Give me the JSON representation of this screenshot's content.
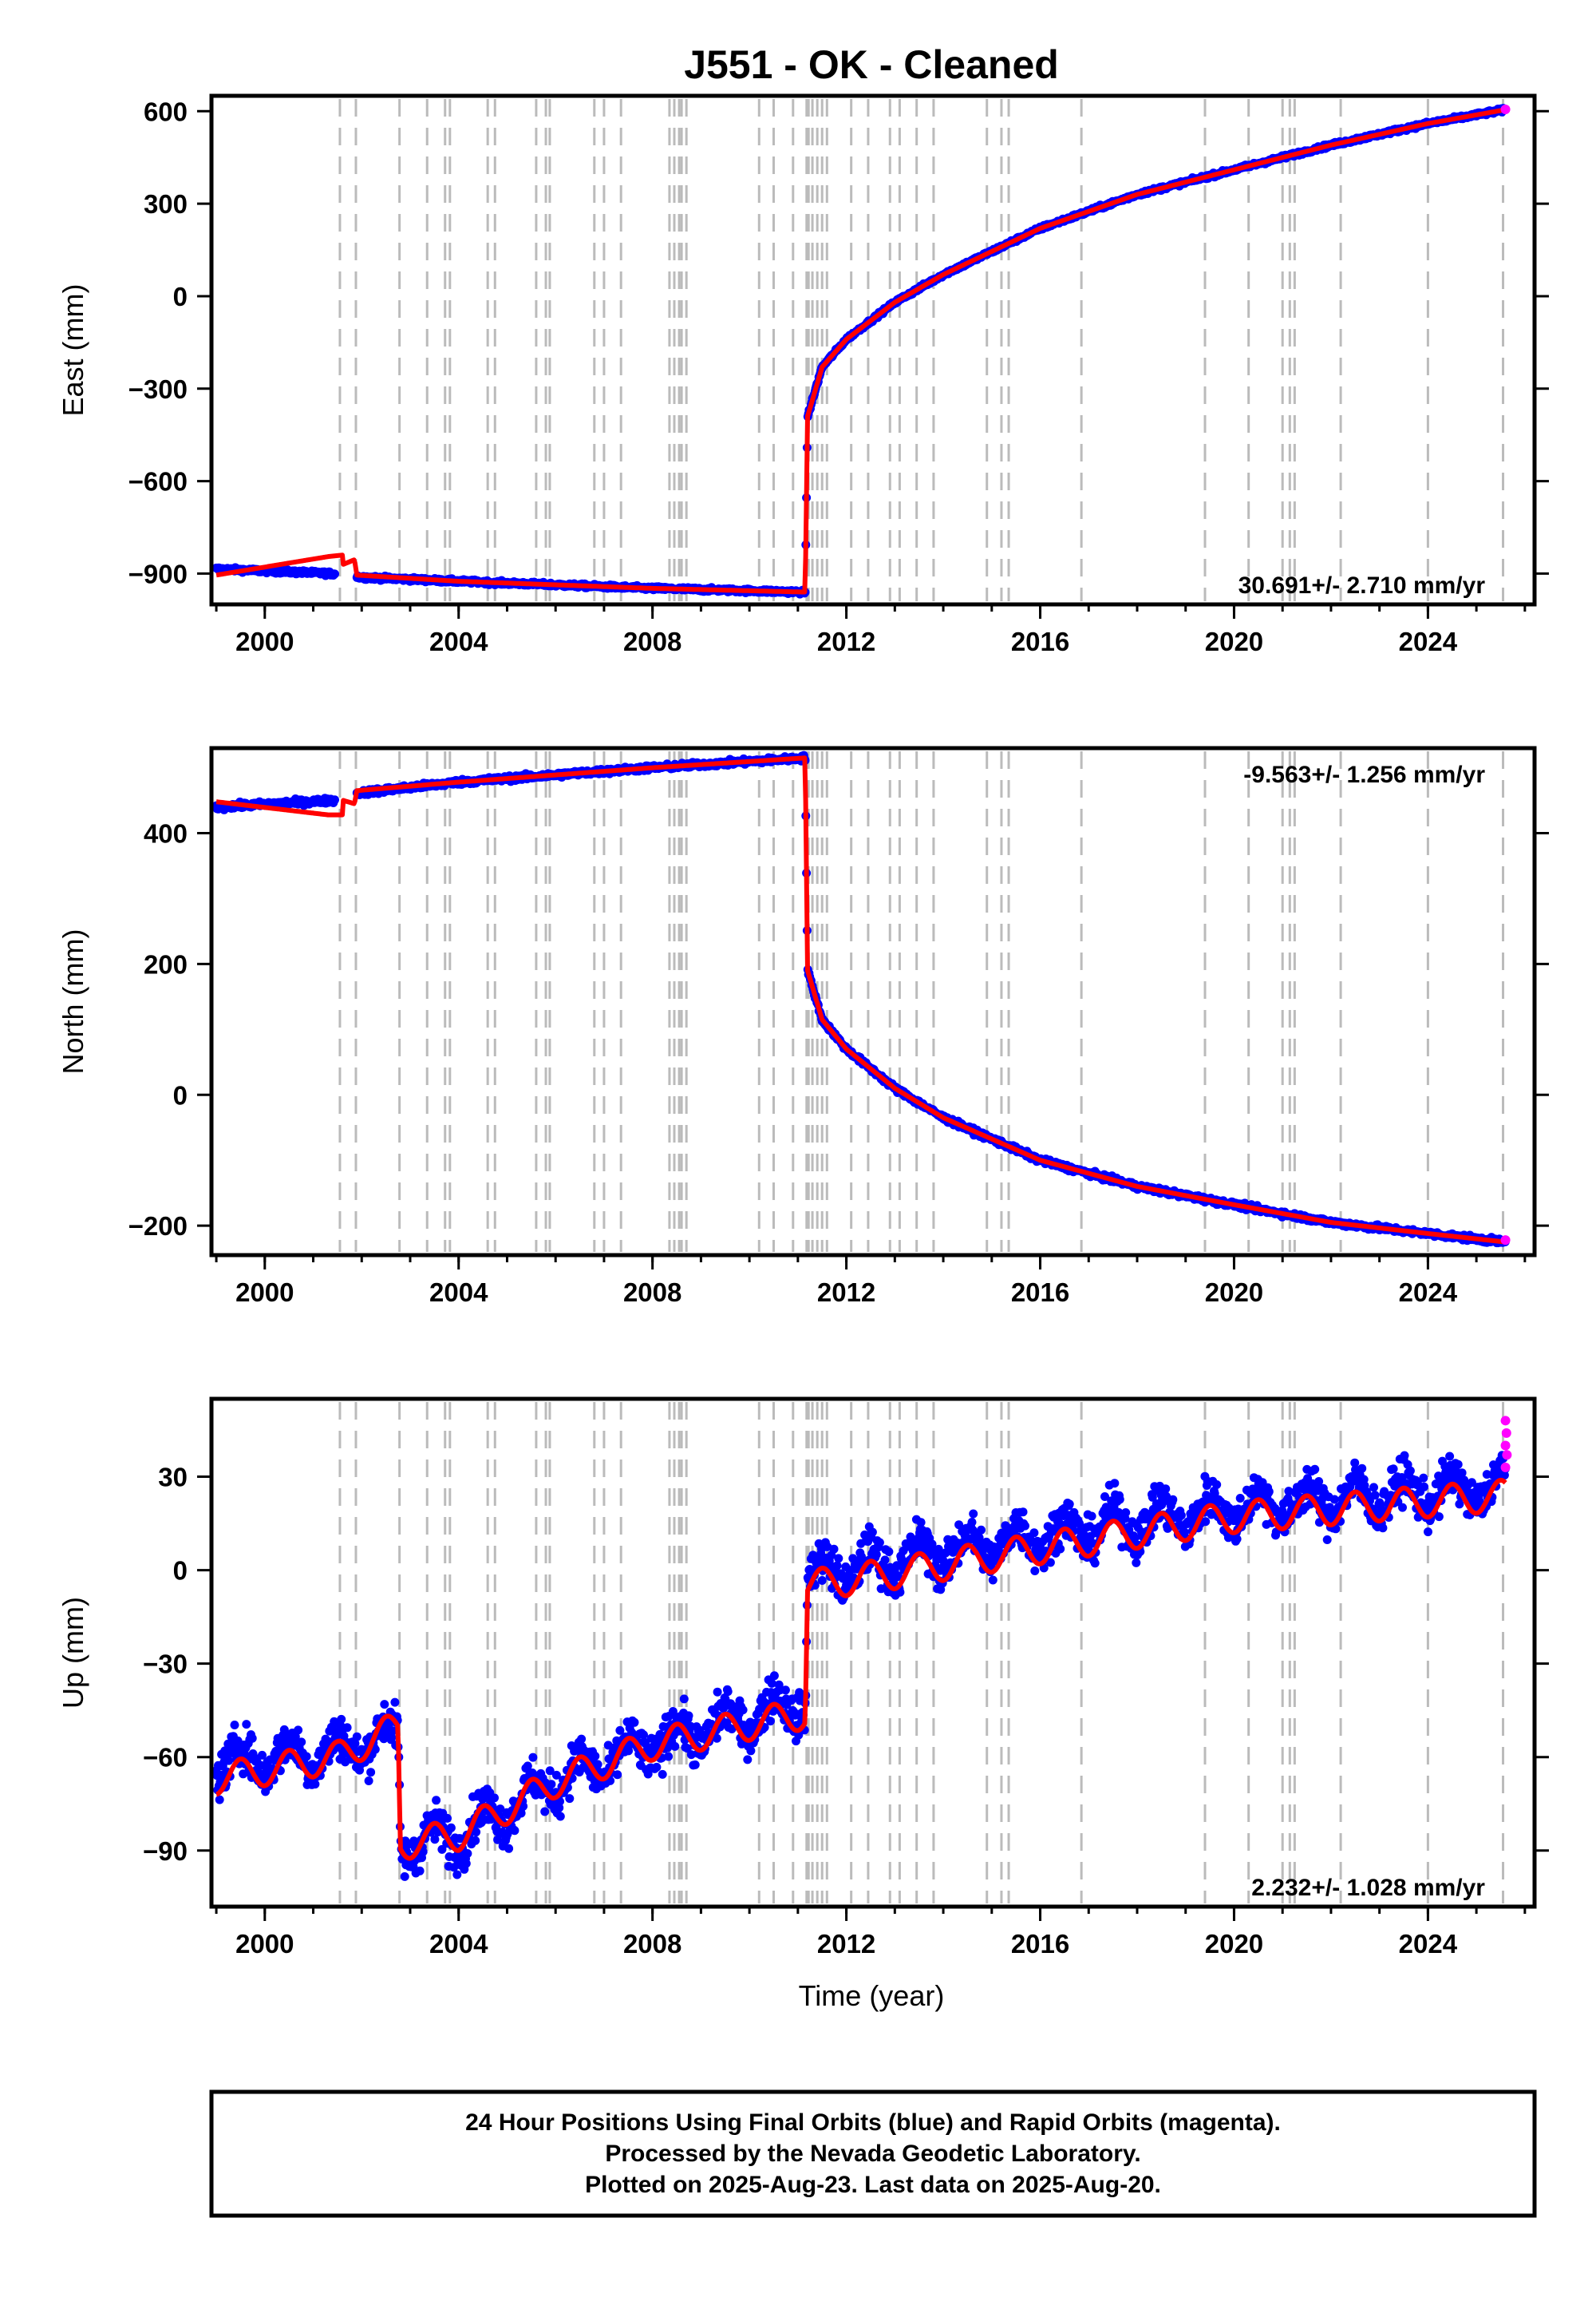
{
  "title": "J551  - OK - Cleaned",
  "xlabel": "Time (year)",
  "footer": {
    "line1": "24 Hour Positions Using Final Orbits (blue) and Rapid Orbits (magenta).",
    "line2": "Processed by the Nevada Geodetic Laboratory.",
    "line3": "Plotted on 2025-Aug-23. Last data on 2025-Aug-20."
  },
  "colors": {
    "final_orbits": "#0000ff",
    "rapid_orbits": "#ff00ff",
    "model": "#ff0000",
    "event_lines": "#bbbbbb",
    "frame": "#000000"
  },
  "chart_data": [
    {
      "type": "scatter",
      "component": "east",
      "ylabel": "East (mm)",
      "xlim": [
        1998.9,
        2026.2
      ],
      "ylim": [
        -1000,
        650
      ],
      "xticks": [
        "2000",
        "2004",
        "2008",
        "2012",
        "2016",
        "2020",
        "2024"
      ],
      "yticks": [
        "600",
        "300",
        "0",
        "-300",
        "-600",
        "-900"
      ],
      "rate_label": "30.691+/- 2.710 mm/yr",
      "rate_position": "bottom-right",
      "event_years": [
        2001.55,
        2001.88,
        2002.78,
        2003.35,
        2003.72,
        2003.82,
        2004.6,
        2004.75,
        2005.6,
        2005.8,
        2005.88,
        2006.8,
        2007.0,
        2007.35,
        2008.35,
        2008.45,
        2008.55,
        2008.6,
        2008.7,
        2010.2,
        2010.5,
        2010.9,
        2011.18,
        2011.22,
        2011.3,
        2011.4,
        2011.5,
        2011.6,
        2012.1,
        2012.45,
        2012.9,
        2013.1,
        2013.45,
        2013.8,
        2014.9,
        2015.2,
        2015.35,
        2016.85,
        2019.4,
        2020.3,
        2021.0,
        2021.15,
        2021.25,
        2022.2,
        2024.0,
        2025.55
      ],
      "key_points": [
        {
          "x": 1999.0,
          "y": -885
        },
        {
          "x": 2001.4,
          "y": -900
        },
        {
          "x": 2002.0,
          "y": -912
        },
        {
          "x": 2004.0,
          "y": -925
        },
        {
          "x": 2008.0,
          "y": -948
        },
        {
          "x": 2011.15,
          "y": -960
        },
        {
          "x": 2011.2,
          "y": -390
        },
        {
          "x": 2011.5,
          "y": -230
        },
        {
          "x": 2012.0,
          "y": -140
        },
        {
          "x": 2013.0,
          "y": -20
        },
        {
          "x": 2014.0,
          "y": 70
        },
        {
          "x": 2016.0,
          "y": 220
        },
        {
          "x": 2018.0,
          "y": 330
        },
        {
          "x": 2020.0,
          "y": 410
        },
        {
          "x": 2022.0,
          "y": 490
        },
        {
          "x": 2024.0,
          "y": 560
        },
        {
          "x": 2025.6,
          "y": 605
        }
      ],
      "model_points": [
        {
          "x": 1999.0,
          "y": -905
        },
        {
          "x": 2001.3,
          "y": -845
        },
        {
          "x": 2001.6,
          "y": -840
        },
        {
          "x": 2001.62,
          "y": -870
        },
        {
          "x": 2001.85,
          "y": -855
        },
        {
          "x": 2001.9,
          "y": -905
        },
        {
          "x": 2004.0,
          "y": -925
        },
        {
          "x": 2008.0,
          "y": -948
        },
        {
          "x": 2011.15,
          "y": -960
        },
        {
          "x": 2011.2,
          "y": -390
        },
        {
          "x": 2011.5,
          "y": -230
        },
        {
          "x": 2012.0,
          "y": -140
        },
        {
          "x": 2013.0,
          "y": -20
        },
        {
          "x": 2014.0,
          "y": 70
        },
        {
          "x": 2016.0,
          "y": 220
        },
        {
          "x": 2018.0,
          "y": 330
        },
        {
          "x": 2020.0,
          "y": 410
        },
        {
          "x": 2022.0,
          "y": 490
        },
        {
          "x": 2024.0,
          "y": 560
        },
        {
          "x": 2025.6,
          "y": 605
        }
      ],
      "seasonal_amplitude": 0,
      "scatter_noise": 6,
      "rapid_points": [
        {
          "x": 2025.6,
          "y": 606
        }
      ]
    },
    {
      "type": "scatter",
      "component": "north",
      "ylabel": "North (mm)",
      "xlim": [
        1998.9,
        2026.2
      ],
      "ylim": [
        -245,
        530
      ],
      "xticks": [
        "2000",
        "2004",
        "2008",
        "2012",
        "2016",
        "2020",
        "2024"
      ],
      "yticks": [
        "400",
        "200",
        "0",
        "-200"
      ],
      "rate_label": "-9.563+/- 1.256 mm/yr",
      "rate_position": "top-right",
      "event_years": [
        2001.55,
        2001.88,
        2002.78,
        2003.35,
        2003.72,
        2003.82,
        2004.6,
        2004.75,
        2005.6,
        2005.8,
        2005.88,
        2006.8,
        2007.0,
        2007.35,
        2008.35,
        2008.45,
        2008.55,
        2008.6,
        2008.7,
        2010.2,
        2010.5,
        2010.9,
        2011.18,
        2011.22,
        2011.3,
        2011.4,
        2011.5,
        2011.6,
        2012.1,
        2012.45,
        2012.9,
        2013.1,
        2013.45,
        2013.8,
        2014.9,
        2015.2,
        2015.35,
        2016.85,
        2019.4,
        2020.3,
        2021.0,
        2021.15,
        2021.25,
        2022.2,
        2024.0,
        2025.55
      ],
      "key_points": [
        {
          "x": 1999.0,
          "y": 440
        },
        {
          "x": 2001.4,
          "y": 450
        },
        {
          "x": 2002.0,
          "y": 462
        },
        {
          "x": 2004.0,
          "y": 478
        },
        {
          "x": 2008.0,
          "y": 500
        },
        {
          "x": 2011.15,
          "y": 515
        },
        {
          "x": 2011.2,
          "y": 190
        },
        {
          "x": 2011.5,
          "y": 115
        },
        {
          "x": 2012.0,
          "y": 70
        },
        {
          "x": 2013.0,
          "y": 10
        },
        {
          "x": 2014.0,
          "y": -35
        },
        {
          "x": 2016.0,
          "y": -100
        },
        {
          "x": 2018.0,
          "y": -140
        },
        {
          "x": 2020.0,
          "y": -168
        },
        {
          "x": 2022.0,
          "y": -195
        },
        {
          "x": 2024.0,
          "y": -212
        },
        {
          "x": 2025.6,
          "y": -225
        }
      ],
      "model_points": [
        {
          "x": 1999.0,
          "y": 448
        },
        {
          "x": 2001.3,
          "y": 428
        },
        {
          "x": 2001.6,
          "y": 428
        },
        {
          "x": 2001.62,
          "y": 450
        },
        {
          "x": 2001.85,
          "y": 445
        },
        {
          "x": 2001.9,
          "y": 465
        },
        {
          "x": 2004.0,
          "y": 478
        },
        {
          "x": 2008.0,
          "y": 500
        },
        {
          "x": 2011.15,
          "y": 515
        },
        {
          "x": 2011.2,
          "y": 190
        },
        {
          "x": 2011.5,
          "y": 115
        },
        {
          "x": 2012.0,
          "y": 70
        },
        {
          "x": 2013.0,
          "y": 10
        },
        {
          "x": 2014.0,
          "y": -35
        },
        {
          "x": 2016.0,
          "y": -100
        },
        {
          "x": 2018.0,
          "y": -140
        },
        {
          "x": 2020.0,
          "y": -168
        },
        {
          "x": 2022.0,
          "y": -195
        },
        {
          "x": 2024.0,
          "y": -212
        },
        {
          "x": 2025.6,
          "y": -225
        }
      ],
      "seasonal_amplitude": 0,
      "scatter_noise": 4,
      "rapid_points": [
        {
          "x": 2025.6,
          "y": -222
        }
      ]
    },
    {
      "type": "scatter",
      "component": "up",
      "ylabel": "Up (mm)",
      "xlim": [
        1998.9,
        2026.2
      ],
      "ylim": [
        -108,
        55
      ],
      "xticks": [
        "2000",
        "2004",
        "2008",
        "2012",
        "2016",
        "2020",
        "2024"
      ],
      "yticks": [
        "30",
        "0",
        "-30",
        "-60",
        "-90"
      ],
      "rate_label": "2.232+/- 1.028 mm/yr",
      "rate_position": "bottom-right",
      "event_years": [
        2001.55,
        2001.88,
        2002.78,
        2003.35,
        2003.72,
        2003.82,
        2004.6,
        2004.75,
        2005.6,
        2005.8,
        2005.88,
        2006.8,
        2007.0,
        2007.35,
        2008.35,
        2008.45,
        2008.55,
        2008.6,
        2008.7,
        2010.2,
        2010.5,
        2010.9,
        2011.18,
        2011.22,
        2011.3,
        2011.4,
        2011.5,
        2011.6,
        2012.1,
        2012.45,
        2012.9,
        2013.1,
        2013.45,
        2013.8,
        2014.9,
        2015.2,
        2015.35,
        2016.85,
        2019.4,
        2020.3,
        2021.0,
        2021.15,
        2021.25,
        2022.2,
        2024.0,
        2025.55
      ],
      "key_points": [
        {
          "x": 1999.0,
          "y": -62
        },
        {
          "x": 2001.5,
          "y": -58
        },
        {
          "x": 2002.75,
          "y": -52
        },
        {
          "x": 2002.8,
          "y": -88
        },
        {
          "x": 2004.0,
          "y": -85
        },
        {
          "x": 2006.0,
          "y": -68
        },
        {
          "x": 2008.0,
          "y": -56
        },
        {
          "x": 2011.15,
          "y": -42
        },
        {
          "x": 2011.2,
          "y": -2
        },
        {
          "x": 2013.0,
          "y": 3
        },
        {
          "x": 2016.0,
          "y": 11
        },
        {
          "x": 2020.0,
          "y": 20
        },
        {
          "x": 2025.6,
          "y": 27
        }
      ],
      "model_points": [
        {
          "x": 1999.0,
          "y": -67
        },
        {
          "x": 2001.5,
          "y": -60
        },
        {
          "x": 2002.75,
          "y": -50
        },
        {
          "x": 2002.8,
          "y": -88
        },
        {
          "x": 2004.0,
          "y": -85
        },
        {
          "x": 2006.0,
          "y": -68
        },
        {
          "x": 2008.0,
          "y": -56
        },
        {
          "x": 2011.15,
          "y": -46
        },
        {
          "x": 2011.2,
          "y": -5
        },
        {
          "x": 2013.0,
          "y": -1
        },
        {
          "x": 2016.0,
          "y": 7
        },
        {
          "x": 2020.0,
          "y": 17
        },
        {
          "x": 2025.6,
          "y": 24
        }
      ],
      "seasonal_amplitude": 5,
      "scatter_noise": 7,
      "rapid_points": [
        {
          "x": 2025.6,
          "y": 48
        },
        {
          "x": 2025.62,
          "y": 44
        },
        {
          "x": 2025.6,
          "y": 40
        },
        {
          "x": 2025.63,
          "y": 37
        },
        {
          "x": 2025.6,
          "y": 33
        }
      ]
    }
  ]
}
